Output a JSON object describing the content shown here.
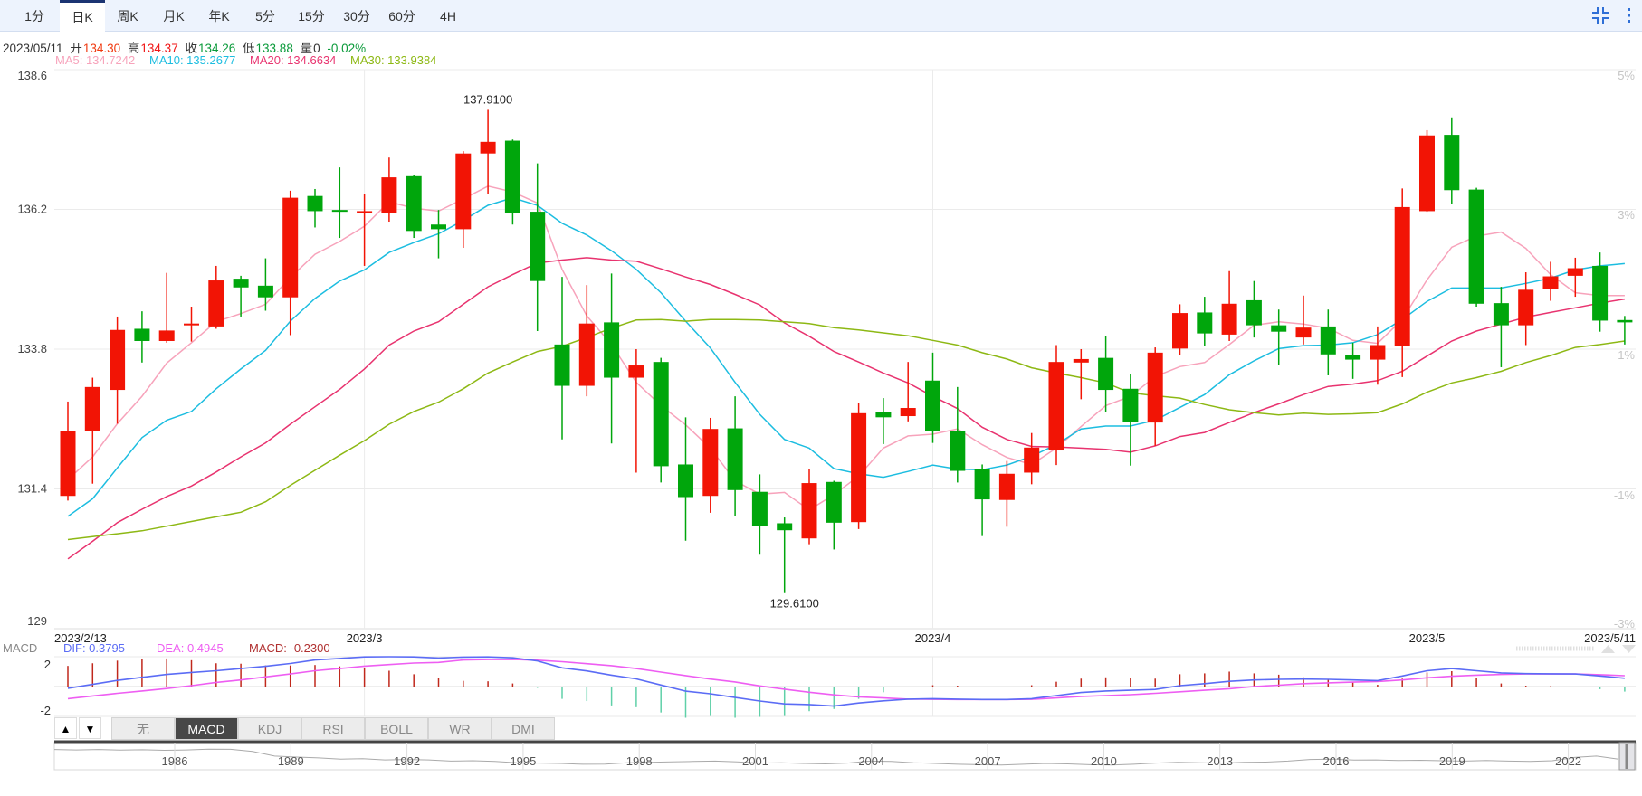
{
  "tabs": [
    "1分",
    "日K",
    "周K",
    "月K",
    "年K",
    "5分",
    "15分",
    "30分",
    "60分",
    "4H"
  ],
  "active_tab_index": 1,
  "header_icons": [
    "compress-icon",
    "more-vertical-icon"
  ],
  "quote": {
    "date": "2023/05/11",
    "open_label": "开",
    "open": "134.30",
    "high_label": "高",
    "high": "134.37",
    "close_label": "收",
    "close": "134.26",
    "low_label": "低",
    "low": "133.88",
    "volume_label": "量",
    "volume": "0",
    "change": "-0.02%"
  },
  "ma_legend": [
    {
      "text": "MA5: 134.7242",
      "color": "#f7a3bb"
    },
    {
      "text": "MA10: 135.2677",
      "color": "#1cbde0"
    },
    {
      "text": "MA20: 134.6634",
      "color": "#e8336f"
    },
    {
      "text": "MA30: 133.9384",
      "color": "#8db814"
    }
  ],
  "colors": {
    "up": "#f21405",
    "down": "#00a60c",
    "grid": "#ebebeb",
    "dif": "#5b6cf5",
    "dea": "#ee5ef2",
    "hist_up": "#c0281c",
    "hist_down": "#5fd0a8",
    "accent": "#2f6fd6"
  },
  "chart_data": {
    "type": "candlestick",
    "y_axis": {
      "ticks": [
        "138.6",
        "136.2",
        "133.8",
        "131.4",
        "129"
      ],
      "tick_values": [
        138.6,
        136.2,
        133.8,
        131.4,
        129
      ],
      "range": [
        129,
        138.6
      ]
    },
    "right_axis": {
      "ticks": [
        "5%",
        "3%",
        "1%",
        "-1%",
        "-3%"
      ]
    },
    "x_labels": [
      {
        "text": "2023/2/13",
        "index": 0,
        "align": "start"
      },
      {
        "text": "2023/3",
        "index": 12,
        "align": "middle"
      },
      {
        "text": "2023/4",
        "index": 35,
        "align": "middle"
      },
      {
        "text": "2023/5",
        "index": 55,
        "align": "middle"
      },
      {
        "text": "2023/5/11",
        "index": 63,
        "align": "end"
      }
    ],
    "month_gridlines": [
      12,
      35,
      55
    ],
    "annotations": {
      "max": {
        "text": "137.9100",
        "index": 17,
        "value": 137.91
      },
      "min": {
        "text": "129.6100",
        "index": 29,
        "value": 129.61
      }
    },
    "candles": [
      [
        131.28,
        132.9,
        131.2,
        132.39
      ],
      [
        132.39,
        133.31,
        131.49,
        133.15
      ],
      [
        133.1,
        134.36,
        132.52,
        134.13
      ],
      [
        134.15,
        134.45,
        133.57,
        133.94
      ],
      [
        133.94,
        135.11,
        133.91,
        134.12
      ],
      [
        134.22,
        134.53,
        133.93,
        134.24
      ],
      [
        134.19,
        135.23,
        134.15,
        134.98
      ],
      [
        135.01,
        135.06,
        134.36,
        134.86
      ],
      [
        134.89,
        135.36,
        134.46,
        134.69
      ],
      [
        134.69,
        136.52,
        134.04,
        136.4
      ],
      [
        136.43,
        136.55,
        135.89,
        136.17
      ],
      [
        136.19,
        136.92,
        135.71,
        136.17
      ],
      [
        136.15,
        136.47,
        135.23,
        136.17
      ],
      [
        136.14,
        137.09,
        135.99,
        136.75
      ],
      [
        136.77,
        136.79,
        135.71,
        135.83
      ],
      [
        135.94,
        136.19,
        135.36,
        135.86
      ],
      [
        135.86,
        137.2,
        135.54,
        137.16
      ],
      [
        137.16,
        137.91,
        136.47,
        137.36
      ],
      [
        137.38,
        137.4,
        135.94,
        136.13
      ],
      [
        136.16,
        136.99,
        134.11,
        134.97
      ],
      [
        133.88,
        135.04,
        132.25,
        133.17
      ],
      [
        133.17,
        134.9,
        132.99,
        134.24
      ],
      [
        134.26,
        135.1,
        132.18,
        133.31
      ],
      [
        133.31,
        133.8,
        131.68,
        133.52
      ],
      [
        133.58,
        133.65,
        131.51,
        131.79
      ],
      [
        131.82,
        132.63,
        130.51,
        131.26
      ],
      [
        131.28,
        132.62,
        130.99,
        132.43
      ],
      [
        132.44,
        132.99,
        130.94,
        131.38
      ],
      [
        131.35,
        131.65,
        130.27,
        130.77
      ],
      [
        130.81,
        130.91,
        129.61,
        130.69
      ],
      [
        130.55,
        131.74,
        130.45,
        131.5
      ],
      [
        131.52,
        131.54,
        130.36,
        130.82
      ],
      [
        130.83,
        132.88,
        130.71,
        132.7
      ],
      [
        132.72,
        132.96,
        132.17,
        132.63
      ],
      [
        132.65,
        133.58,
        132.56,
        132.79
      ],
      [
        133.26,
        133.74,
        132.19,
        132.4
      ],
      [
        132.4,
        133.15,
        131.51,
        131.71
      ],
      [
        131.74,
        131.82,
        130.59,
        131.22
      ],
      [
        131.21,
        131.88,
        130.75,
        131.66
      ],
      [
        131.68,
        132.36,
        131.48,
        132.11
      ],
      [
        132.06,
        133.87,
        131.81,
        133.58
      ],
      [
        133.57,
        133.8,
        132.94,
        133.63
      ],
      [
        133.65,
        134.03,
        132.72,
        133.1
      ],
      [
        133.12,
        133.38,
        131.8,
        132.55
      ],
      [
        132.54,
        133.83,
        132.14,
        133.74
      ],
      [
        133.81,
        134.57,
        133.7,
        134.42
      ],
      [
        134.43,
        134.7,
        133.85,
        134.07
      ],
      [
        134.05,
        135.14,
        133.94,
        134.58
      ],
      [
        134.64,
        134.97,
        134.0,
        134.21
      ],
      [
        134.21,
        134.48,
        133.53,
        134.1
      ],
      [
        134.0,
        134.72,
        133.88,
        134.17
      ],
      [
        134.19,
        134.48,
        133.35,
        133.71
      ],
      [
        133.7,
        133.91,
        133.29,
        133.62
      ],
      [
        133.62,
        134.19,
        133.19,
        133.87
      ],
      [
        133.86,
        136.56,
        133.32,
        136.24
      ],
      [
        136.17,
        137.56,
        136.16,
        137.47
      ],
      [
        137.48,
        137.78,
        136.29,
        136.53
      ],
      [
        136.54,
        136.57,
        134.53,
        134.58
      ],
      [
        134.59,
        134.87,
        133.49,
        134.21
      ],
      [
        134.21,
        135.12,
        133.87,
        134.82
      ],
      [
        134.83,
        135.3,
        134.63,
        135.05
      ],
      [
        135.06,
        135.37,
        134.7,
        135.19
      ],
      [
        135.23,
        135.46,
        134.1,
        134.29
      ],
      [
        134.3,
        134.37,
        133.88,
        134.26
      ]
    ],
    "ma": {
      "ma5": [
        131.56,
        131.95,
        132.52,
        132.99,
        133.56,
        133.91,
        134.27,
        134.41,
        134.57,
        135.03,
        135.43,
        135.65,
        135.91,
        136.33,
        136.22,
        136.17,
        136.38,
        136.6,
        136.5,
        136.31,
        135.17,
        134.37,
        133.88,
        133.23,
        132.83,
        132.5,
        132.1,
        131.54,
        131.31,
        131.34,
        131.04,
        131.3,
        131.62,
        132.1,
        132.31,
        132.34,
        132.43,
        132.16,
        131.94,
        131.82,
        132.1,
        132.47,
        132.83,
        132.99,
        133.33,
        133.5,
        133.57,
        133.88,
        134.21,
        134.27,
        134.23,
        134.16,
        133.95,
        133.9,
        134.31,
        134.99,
        135.55,
        135.74,
        135.81,
        135.53,
        135.08,
        134.77,
        134.72,
        134.72
      ],
      "ma10": [
        130.93,
        131.23,
        131.76,
        132.28,
        132.58,
        132.73,
        133.12,
        133.46,
        133.78,
        134.28,
        134.67,
        134.97,
        135.16,
        135.46,
        135.63,
        135.78,
        136.01,
        136.27,
        136.4,
        136.27,
        135.96,
        135.76,
        135.49,
        135.17,
        134.77,
        134.28,
        133.82,
        133.23,
        132.68,
        132.25,
        132.1,
        131.75,
        131.66,
        131.6,
        131.7,
        131.81,
        131.74,
        131.73,
        131.81,
        131.96,
        132.16,
        132.43,
        132.48,
        132.48,
        132.58,
        132.8,
        133.02,
        133.36,
        133.6,
        133.81,
        133.86,
        133.87,
        133.91,
        134.05,
        134.31,
        134.62,
        134.85,
        134.85,
        134.85,
        134.93,
        135.02,
        135.16,
        135.23,
        135.27
      ],
      "ma20": [
        130.2,
        130.5,
        130.82,
        131.05,
        131.27,
        131.45,
        131.69,
        131.95,
        132.19,
        132.51,
        132.81,
        133.11,
        133.46,
        133.87,
        134.11,
        134.27,
        134.57,
        134.87,
        135.08,
        135.28,
        135.33,
        135.37,
        135.33,
        135.31,
        135.18,
        135.04,
        134.91,
        134.74,
        134.56,
        134.25,
        134.02,
        133.76,
        133.58,
        133.39,
        133.22,
        132.99,
        132.78,
        132.46,
        132.25,
        132.13,
        132.12,
        132.1,
        132.08,
        132.03,
        132.14,
        132.3,
        132.37,
        132.54,
        132.71,
        132.86,
        133.02,
        133.16,
        133.2,
        133.26,
        133.42,
        133.68,
        133.94,
        134.11,
        134.23,
        134.35,
        134.43,
        134.51,
        134.59,
        134.66
      ],
      "ma30": [
        130.53,
        130.58,
        130.63,
        130.68,
        130.76,
        130.84,
        130.92,
        131.0,
        131.18,
        131.46,
        131.72,
        131.98,
        132.23,
        132.51,
        132.73,
        132.89,
        133.12,
        133.39,
        133.58,
        133.76,
        133.85,
        134.0,
        134.16,
        134.3,
        134.31,
        134.28,
        134.31,
        134.31,
        134.3,
        134.27,
        134.24,
        134.17,
        134.13,
        134.08,
        134.03,
        133.95,
        133.87,
        133.74,
        133.63,
        133.48,
        133.39,
        133.31,
        133.22,
        133.05,
        133.0,
        132.96,
        132.85,
        132.76,
        132.71,
        132.67,
        132.7,
        132.68,
        132.69,
        132.71,
        132.86,
        133.06,
        133.22,
        133.31,
        133.42,
        133.57,
        133.69,
        133.83,
        133.88,
        133.94
      ]
    },
    "macd": {
      "label": "MACD",
      "dif_label": "DIF: 0.3795",
      "dea_label": "DEA: 0.4945",
      "macd_label": "MACD: -0.2300",
      "ticks": [
        "2",
        "-2"
      ],
      "dif": [
        -0.08,
        0.1,
        0.28,
        0.42,
        0.55,
        0.64,
        0.72,
        0.82,
        0.92,
        1.05,
        1.21,
        1.28,
        1.35,
        1.36,
        1.35,
        1.3,
        1.34,
        1.35,
        1.31,
        1.17,
        0.85,
        0.71,
        0.52,
        0.35,
        0.07,
        -0.21,
        -0.33,
        -0.5,
        -0.66,
        -0.79,
        -0.82,
        -0.89,
        -0.75,
        -0.65,
        -0.57,
        -0.55,
        -0.57,
        -0.59,
        -0.59,
        -0.55,
        -0.41,
        -0.27,
        -0.2,
        -0.17,
        -0.13,
        0.04,
        0.13,
        0.24,
        0.3,
        0.33,
        0.34,
        0.33,
        0.3,
        0.27,
        0.48,
        0.72,
        0.82,
        0.72,
        0.62,
        0.59,
        0.58,
        0.57,
        0.48,
        0.3795
      ],
      "dea": [
        -0.55,
        -0.43,
        -0.31,
        -0.2,
        -0.09,
        0.04,
        0.19,
        0.3,
        0.44,
        0.57,
        0.72,
        0.82,
        0.93,
        1.0,
        1.07,
        1.1,
        1.21,
        1.23,
        1.24,
        1.2,
        1.13,
        1.04,
        0.95,
        0.82,
        0.66,
        0.5,
        0.34,
        0.21,
        0.03,
        -0.12,
        -0.26,
        -0.38,
        -0.47,
        -0.52,
        -0.57,
        -0.58,
        -0.59,
        -0.59,
        -0.59,
        -0.58,
        -0.52,
        -0.45,
        -0.41,
        -0.37,
        -0.31,
        -0.24,
        -0.17,
        -0.1,
        0.0,
        0.06,
        0.13,
        0.17,
        0.2,
        0.23,
        0.3,
        0.4,
        0.47,
        0.52,
        0.55,
        0.57,
        0.57,
        0.57,
        0.54,
        0.4945
      ]
    }
  },
  "indicator_tabs": [
    "无",
    "MACD",
    "KDJ",
    "RSI",
    "BOLL",
    "WR",
    "DMI"
  ],
  "active_indicator_index": 1,
  "pane_buttons": {
    "up": "▲",
    "down": "▼"
  },
  "navigator": {
    "years": [
      "1986",
      "1989",
      "1992",
      "1995",
      "1998",
      "2001",
      "2004",
      "2007",
      "2010",
      "2013",
      "2016",
      "2019",
      "2022"
    ],
    "series": [
      0.88,
      0.86,
      0.88,
      0.85,
      0.87,
      0.84,
      0.86,
      0.9,
      0.89,
      0.78,
      0.55,
      0.5,
      0.46,
      0.4,
      0.42,
      0.36,
      0.38,
      0.36,
      0.3,
      0.32,
      0.28,
      0.22,
      0.2,
      0.18,
      0.14,
      0.15,
      0.22,
      0.24,
      0.26,
      0.28,
      0.3,
      0.26,
      0.2,
      0.22,
      0.18,
      0.16,
      0.2,
      0.3,
      0.28,
      0.22,
      0.18,
      0.14,
      0.12,
      0.1,
      0.14,
      0.18,
      0.16,
      0.12,
      0.1,
      0.14,
      0.2,
      0.24,
      0.22,
      0.2,
      0.24,
      0.25,
      0.3,
      0.38,
      0.4,
      0.35,
      0.36,
      0.33,
      0.34,
      0.32,
      0.3,
      0.33,
      0.3,
      0.28,
      0.32,
      0.48,
      0.55,
      0.4
    ]
  }
}
